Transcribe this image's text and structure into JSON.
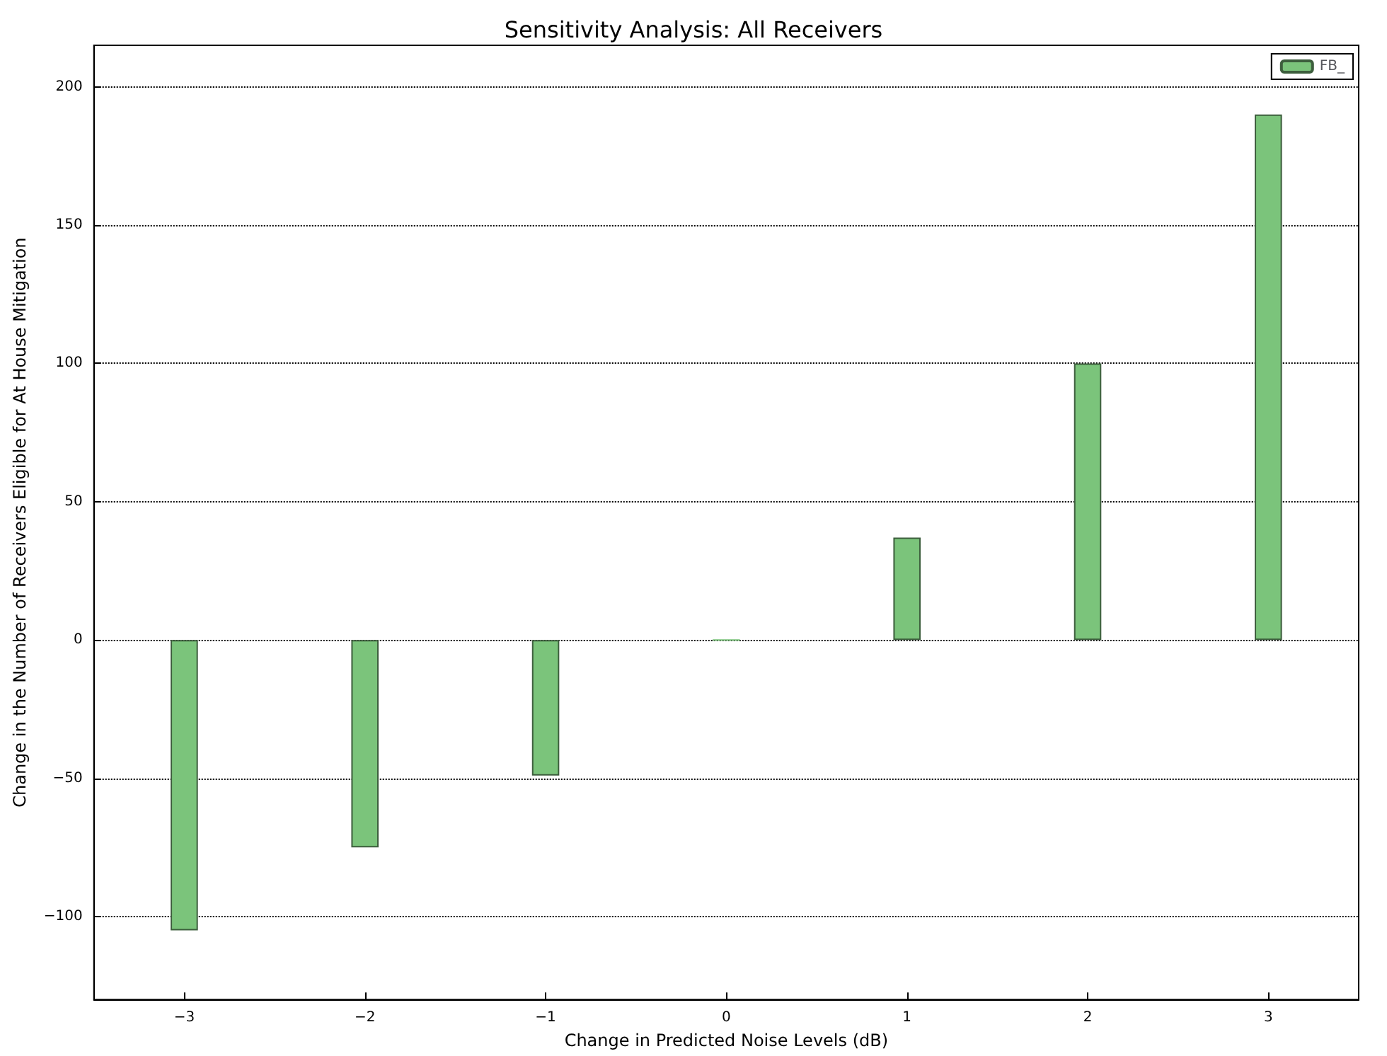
{
  "chart_data": {
    "type": "bar",
    "title": "Sensitivity Analysis: All Receivers",
    "xlabel": "Change in Predicted Noise Levels (dB)",
    "ylabel": "Change in the Number of Receivers Eligible for At House Mitigation",
    "x": [
      -3,
      -2,
      -1,
      0,
      1,
      2,
      3
    ],
    "series": [
      {
        "name": "FB_",
        "color": "#7bc47b",
        "values": [
          -105,
          -75,
          -49,
          0,
          37,
          100,
          190
        ]
      }
    ],
    "xlim": [
      -3.5,
      3.5
    ],
    "xticks": [
      -3,
      -2,
      -1,
      0,
      1,
      2,
      3
    ],
    "ylim": [
      -130,
      215
    ],
    "yticks": [
      -100,
      -50,
      0,
      50,
      100,
      150,
      200
    ],
    "grid": "y",
    "legend": "top right"
  }
}
